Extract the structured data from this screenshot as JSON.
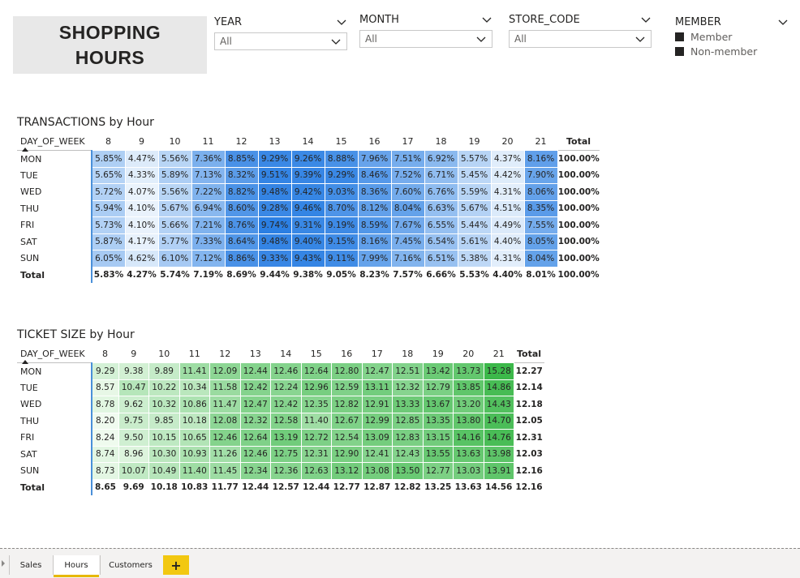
{
  "page_title": "SHOPPING\nHOURS",
  "slicers": {
    "year": {
      "label": "YEAR",
      "value": "All"
    },
    "month": {
      "label": "MONTH",
      "value": "All"
    },
    "store_code": {
      "label": "STORE_CODE",
      "value": "All"
    },
    "member": {
      "label": "MEMBER",
      "options": [
        "Member",
        "Non-member"
      ]
    }
  },
  "transactions": {
    "title": "TRANSACTIONS by Hour",
    "row_header": "DAY_OF_WEEK",
    "columns": [
      "8",
      "9",
      "10",
      "11",
      "12",
      "13",
      "14",
      "15",
      "16",
      "17",
      "18",
      "19",
      "20",
      "21"
    ],
    "total_label": "Total",
    "rows": [
      {
        "day": "MON",
        "values": [
          "5.85%",
          "4.47%",
          "5.56%",
          "7.36%",
          "8.85%",
          "9.29%",
          "9.26%",
          "8.88%",
          "7.96%",
          "7.51%",
          "6.92%",
          "5.57%",
          "4.37%",
          "8.16%"
        ],
        "total": "100.00%"
      },
      {
        "day": "TUE",
        "values": [
          "5.65%",
          "4.33%",
          "5.89%",
          "7.13%",
          "8.32%",
          "9.51%",
          "9.39%",
          "9.29%",
          "8.46%",
          "7.52%",
          "6.71%",
          "5.45%",
          "4.42%",
          "7.90%"
        ],
        "total": "100.00%"
      },
      {
        "day": "WED",
        "values": [
          "5.72%",
          "4.07%",
          "5.56%",
          "7.22%",
          "8.82%",
          "9.48%",
          "9.42%",
          "9.03%",
          "8.36%",
          "7.60%",
          "6.76%",
          "5.59%",
          "4.31%",
          "8.06%"
        ],
        "total": "100.00%"
      },
      {
        "day": "THU",
        "values": [
          "5.94%",
          "4.10%",
          "5.67%",
          "6.94%",
          "8.60%",
          "9.28%",
          "9.46%",
          "8.70%",
          "8.12%",
          "8.04%",
          "6.63%",
          "5.67%",
          "4.51%",
          "8.35%"
        ],
        "total": "100.00%"
      },
      {
        "day": "FRI",
        "values": [
          "5.73%",
          "4.10%",
          "5.66%",
          "7.21%",
          "8.76%",
          "9.74%",
          "9.31%",
          "9.19%",
          "8.59%",
          "7.67%",
          "6.55%",
          "5.44%",
          "4.49%",
          "7.55%"
        ],
        "total": "100.00%"
      },
      {
        "day": "SAT",
        "values": [
          "5.87%",
          "4.17%",
          "5.77%",
          "7.33%",
          "8.64%",
          "9.48%",
          "9.40%",
          "9.15%",
          "8.16%",
          "7.45%",
          "6.54%",
          "5.61%",
          "4.40%",
          "8.05%"
        ],
        "total": "100.00%"
      },
      {
        "day": "SUN",
        "values": [
          "6.05%",
          "4.62%",
          "6.10%",
          "7.12%",
          "8.86%",
          "9.33%",
          "9.43%",
          "9.11%",
          "7.99%",
          "7.16%",
          "6.51%",
          "5.38%",
          "4.31%",
          "8.04%"
        ],
        "total": "100.00%"
      }
    ],
    "totals": {
      "label": "Total",
      "values": [
        "5.83%",
        "4.27%",
        "5.74%",
        "7.19%",
        "8.69%",
        "9.44%",
        "9.38%",
        "9.05%",
        "8.23%",
        "7.57%",
        "6.66%",
        "5.53%",
        "4.40%",
        "8.01%"
      ],
      "total": "100.00%"
    },
    "color_min": "#eaf3fc",
    "color_max": "#2b7fe3"
  },
  "ticket_size": {
    "title": "TICKET SIZE by Hour",
    "row_header": "DAY_OF_WEEK",
    "columns": [
      "8",
      "9",
      "10",
      "11",
      "12",
      "13",
      "14",
      "15",
      "16",
      "17",
      "18",
      "19",
      "20",
      "21"
    ],
    "total_label": "Total",
    "rows": [
      {
        "day": "MON",
        "values": [
          "9.29",
          "9.38",
          "9.89",
          "11.41",
          "12.09",
          "12.44",
          "12.46",
          "12.64",
          "12.80",
          "12.47",
          "12.51",
          "13.42",
          "13.73",
          "15.28"
        ],
        "total": "12.27"
      },
      {
        "day": "TUE",
        "values": [
          "8.57",
          "10.47",
          "10.22",
          "10.34",
          "11.58",
          "12.42",
          "12.24",
          "12.96",
          "12.59",
          "13.11",
          "12.32",
          "12.79",
          "13.85",
          "14.86"
        ],
        "total": "12.14"
      },
      {
        "day": "WED",
        "values": [
          "8.78",
          "9.62",
          "10.32",
          "10.86",
          "11.47",
          "12.47",
          "12.42",
          "12.35",
          "12.82",
          "12.91",
          "13.33",
          "13.67",
          "13.20",
          "14.43"
        ],
        "total": "12.18"
      },
      {
        "day": "THU",
        "values": [
          "8.20",
          "9.75",
          "9.85",
          "10.18",
          "12.08",
          "12.32",
          "12.58",
          "11.40",
          "12.67",
          "12.99",
          "12.85",
          "13.35",
          "13.80",
          "14.70"
        ],
        "total": "12.05"
      },
      {
        "day": "FRI",
        "values": [
          "8.24",
          "9.50",
          "10.15",
          "10.65",
          "12.46",
          "12.64",
          "13.19",
          "12.72",
          "12.54",
          "13.09",
          "12.83",
          "13.15",
          "14.16",
          "14.76"
        ],
        "total": "12.31"
      },
      {
        "day": "SAT",
        "values": [
          "8.74",
          "8.96",
          "10.30",
          "10.93",
          "11.26",
          "12.46",
          "12.75",
          "12.31",
          "12.90",
          "12.41",
          "12.43",
          "13.55",
          "13.63",
          "13.98"
        ],
        "total": "12.03"
      },
      {
        "day": "SUN",
        "values": [
          "8.73",
          "10.07",
          "10.49",
          "11.40",
          "11.45",
          "12.34",
          "12.36",
          "12.63",
          "13.12",
          "13.08",
          "13.50",
          "12.77",
          "13.03",
          "13.91"
        ],
        "total": "12.16"
      }
    ],
    "totals": {
      "label": "Total",
      "values": [
        "8.65",
        "9.69",
        "10.18",
        "10.83",
        "11.77",
        "12.44",
        "12.57",
        "12.44",
        "12.77",
        "12.87",
        "12.82",
        "13.25",
        "13.63",
        "14.56"
      ],
      "total": "12.16"
    },
    "color_min": "#f0fbef",
    "color_max": "#3cb84a"
  },
  "tabs": [
    {
      "label": "Sales",
      "active": false
    },
    {
      "label": "Hours",
      "active": true
    },
    {
      "label": "Customers",
      "active": false
    }
  ],
  "add_tab_label": "+"
}
